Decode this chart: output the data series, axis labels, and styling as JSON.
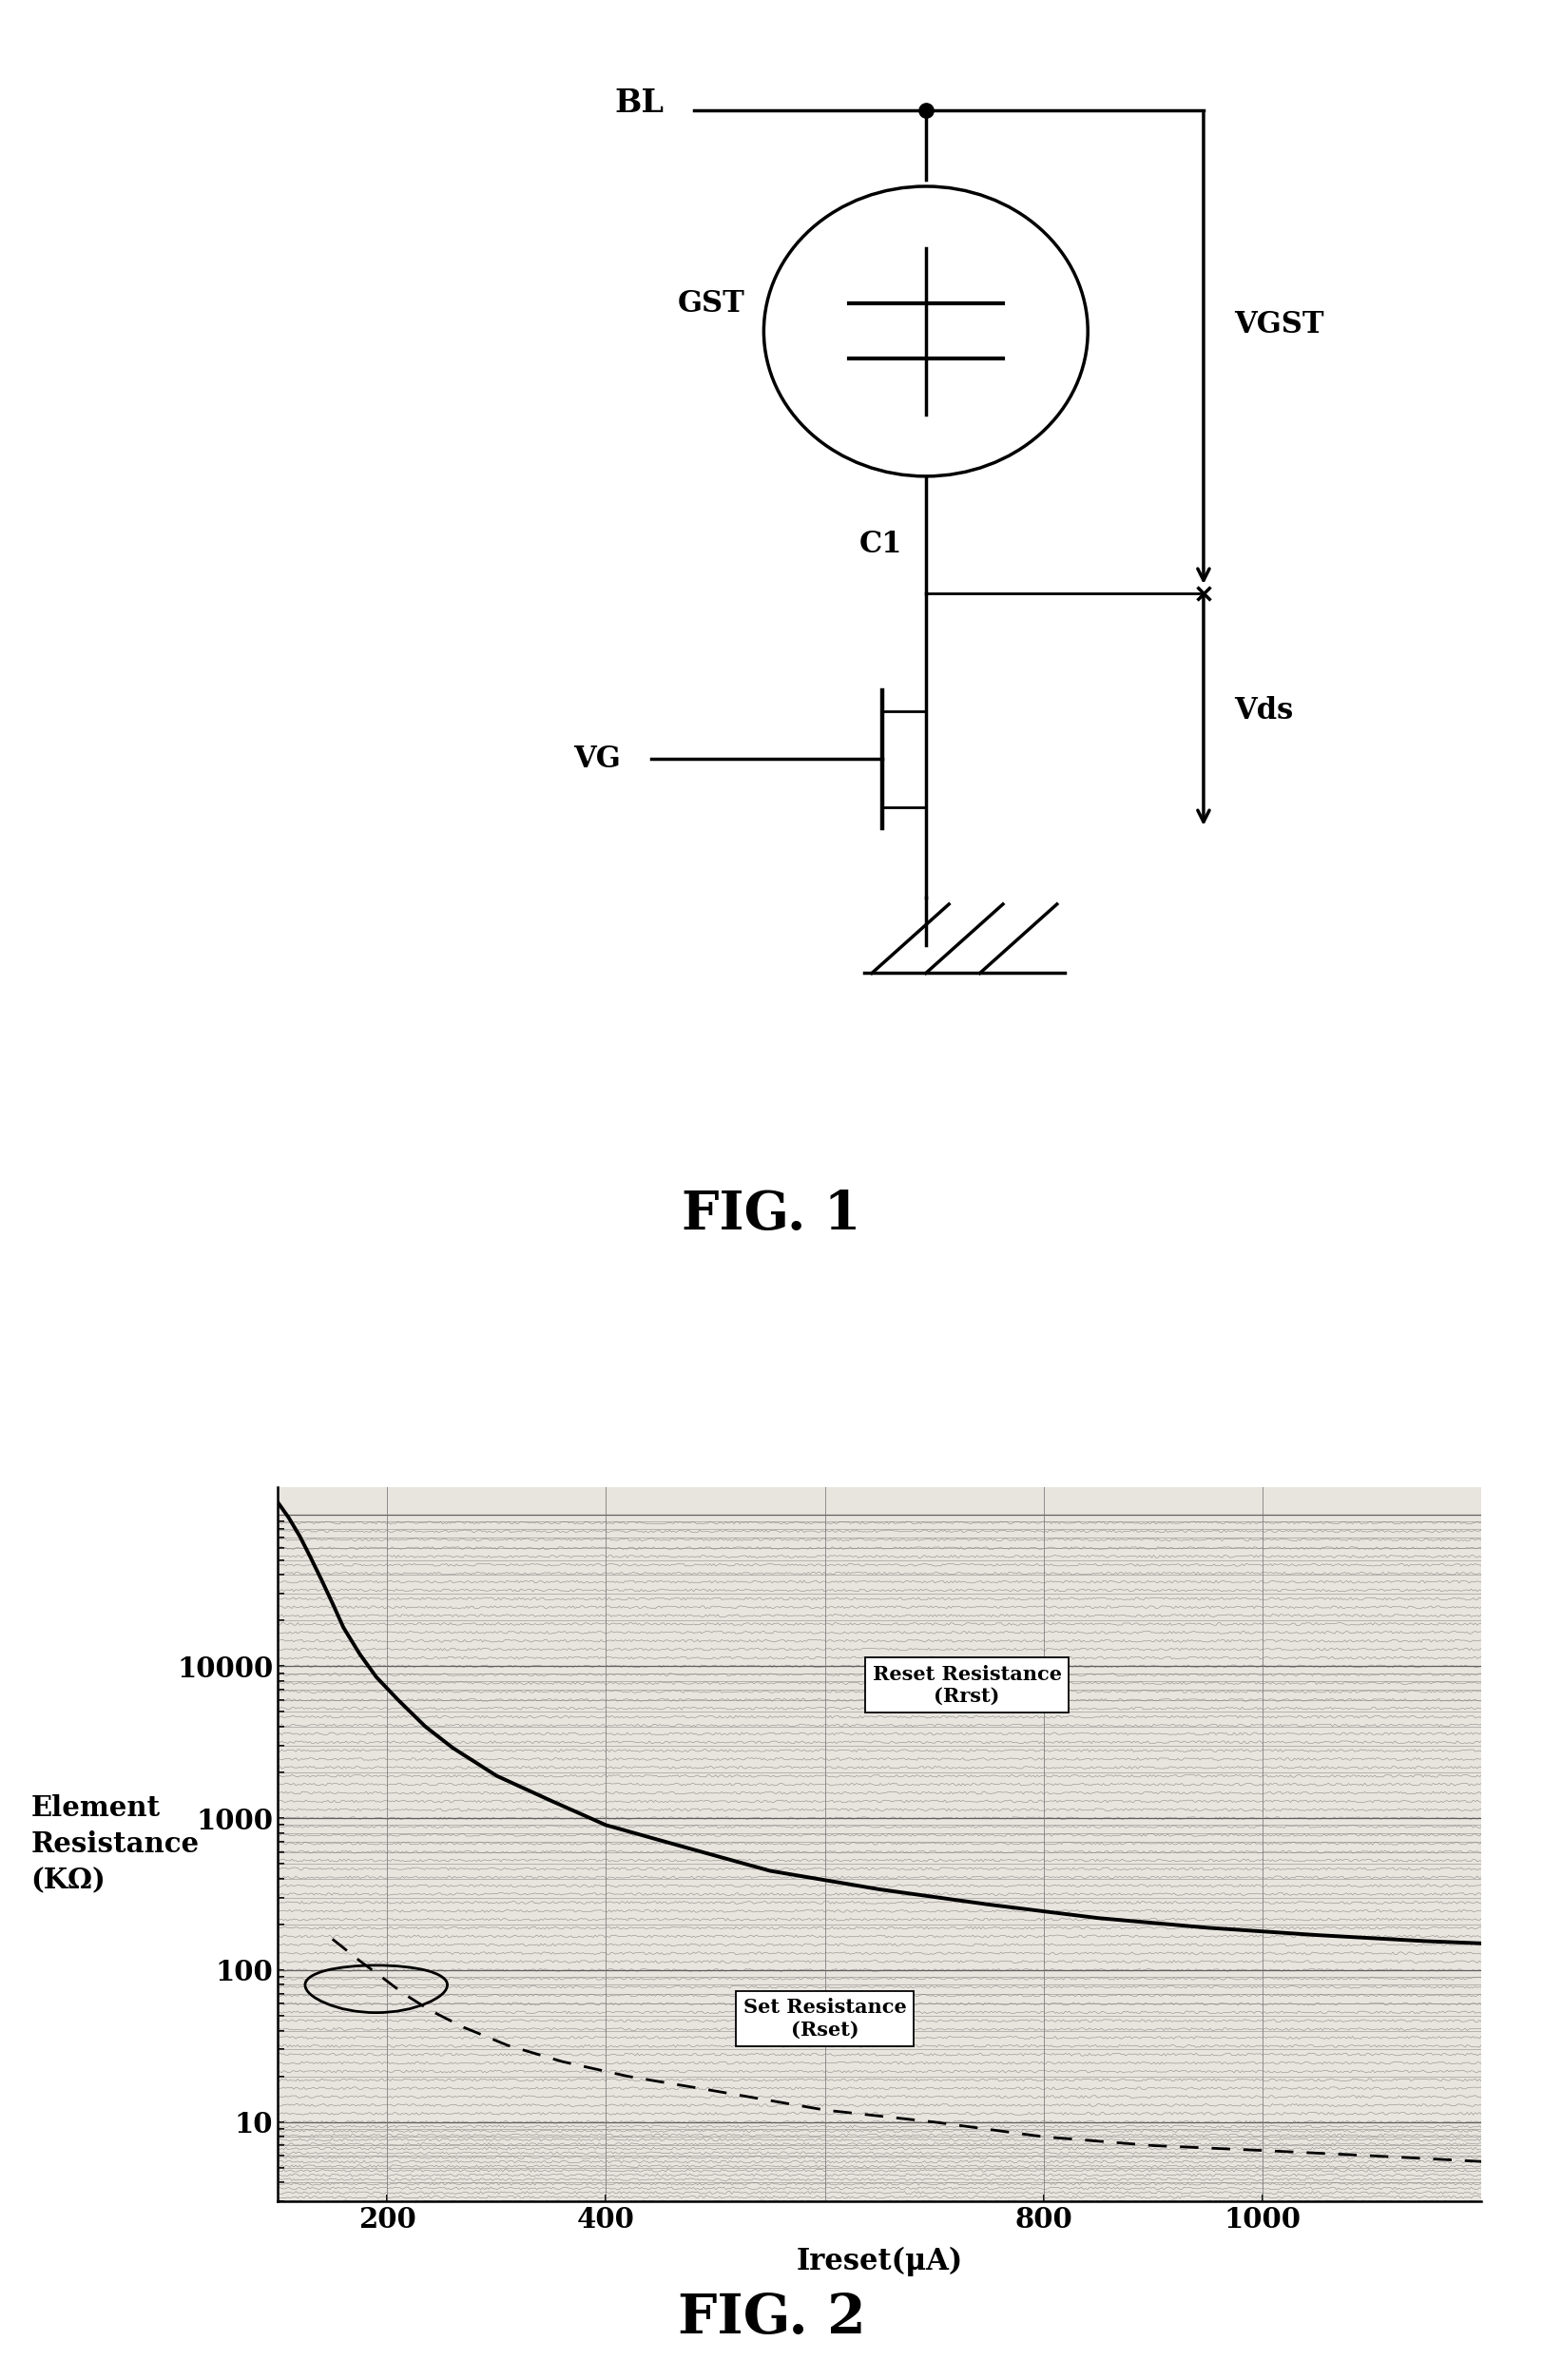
{
  "fig1_title": "FIG. 1",
  "fig2_title": "FIG. 2",
  "fig1_labels": {
    "BL": "BL",
    "GST": "GST",
    "VGST": "VGST",
    "C1": "C1",
    "VG": "VG",
    "Vds": "Vds"
  },
  "fig2_ylabel_lines": [
    "Element",
    "Resistance",
    "(KΩ)"
  ],
  "fig2_xlabel": "Ireset(μA)",
  "fig2_xticks": [
    200,
    400,
    800,
    1000
  ],
  "fig2_ytick_labels": [
    "10",
    "100",
    "1000",
    "10000"
  ],
  "reset_label": "Reset Resistance\n(Rrst)",
  "set_label": "Set Resistance\n(Rset)",
  "background_color": "#ffffff",
  "line_color": "#000000"
}
